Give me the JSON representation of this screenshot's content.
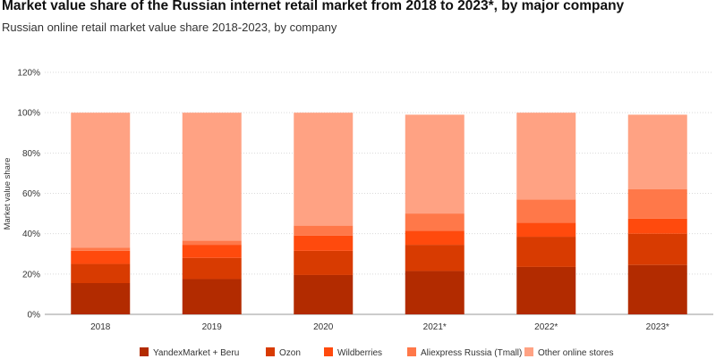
{
  "title": "Market value share of the Russian internet retail market from 2018 to 2023*, by major company",
  "subtitle": "Russian online retail market value share 2018-2023, by company",
  "chart_data": {
    "type": "bar",
    "stacked": true,
    "categories": [
      "2018",
      "2019",
      "2020",
      "2021*",
      "2022*",
      "2023*"
    ],
    "ylabel": "Market value share",
    "ylim": [
      0,
      120
    ],
    "yticks": [
      "0%",
      "20%",
      "40%",
      "60%",
      "80%",
      "100%",
      "120%"
    ],
    "grid": true,
    "legend_position": "bottom",
    "series": [
      {
        "name": "YandexMarket + Beru",
        "color": "#b22b00",
        "values": [
          15.5,
          17.5,
          19.5,
          21.5,
          23.5,
          24.5
        ]
      },
      {
        "name": "Ozon",
        "color": "#d83b01",
        "values": [
          9.5,
          10.5,
          12,
          13,
          15,
          15.5
        ]
      },
      {
        "name": "Wildberries",
        "color": "#ff4a0d",
        "values": [
          6.5,
          6.5,
          7.5,
          7,
          7,
          7.5
        ]
      },
      {
        "name": "Aliexpress Russia (Tmall)",
        "color": "#ff7849",
        "values": [
          1.5,
          2,
          5,
          8.5,
          11.5,
          14.5
        ]
      },
      {
        "name": "Other online stores",
        "color": "#ffa283",
        "values": [
          67,
          63.5,
          56,
          49,
          43,
          37
        ]
      }
    ]
  }
}
